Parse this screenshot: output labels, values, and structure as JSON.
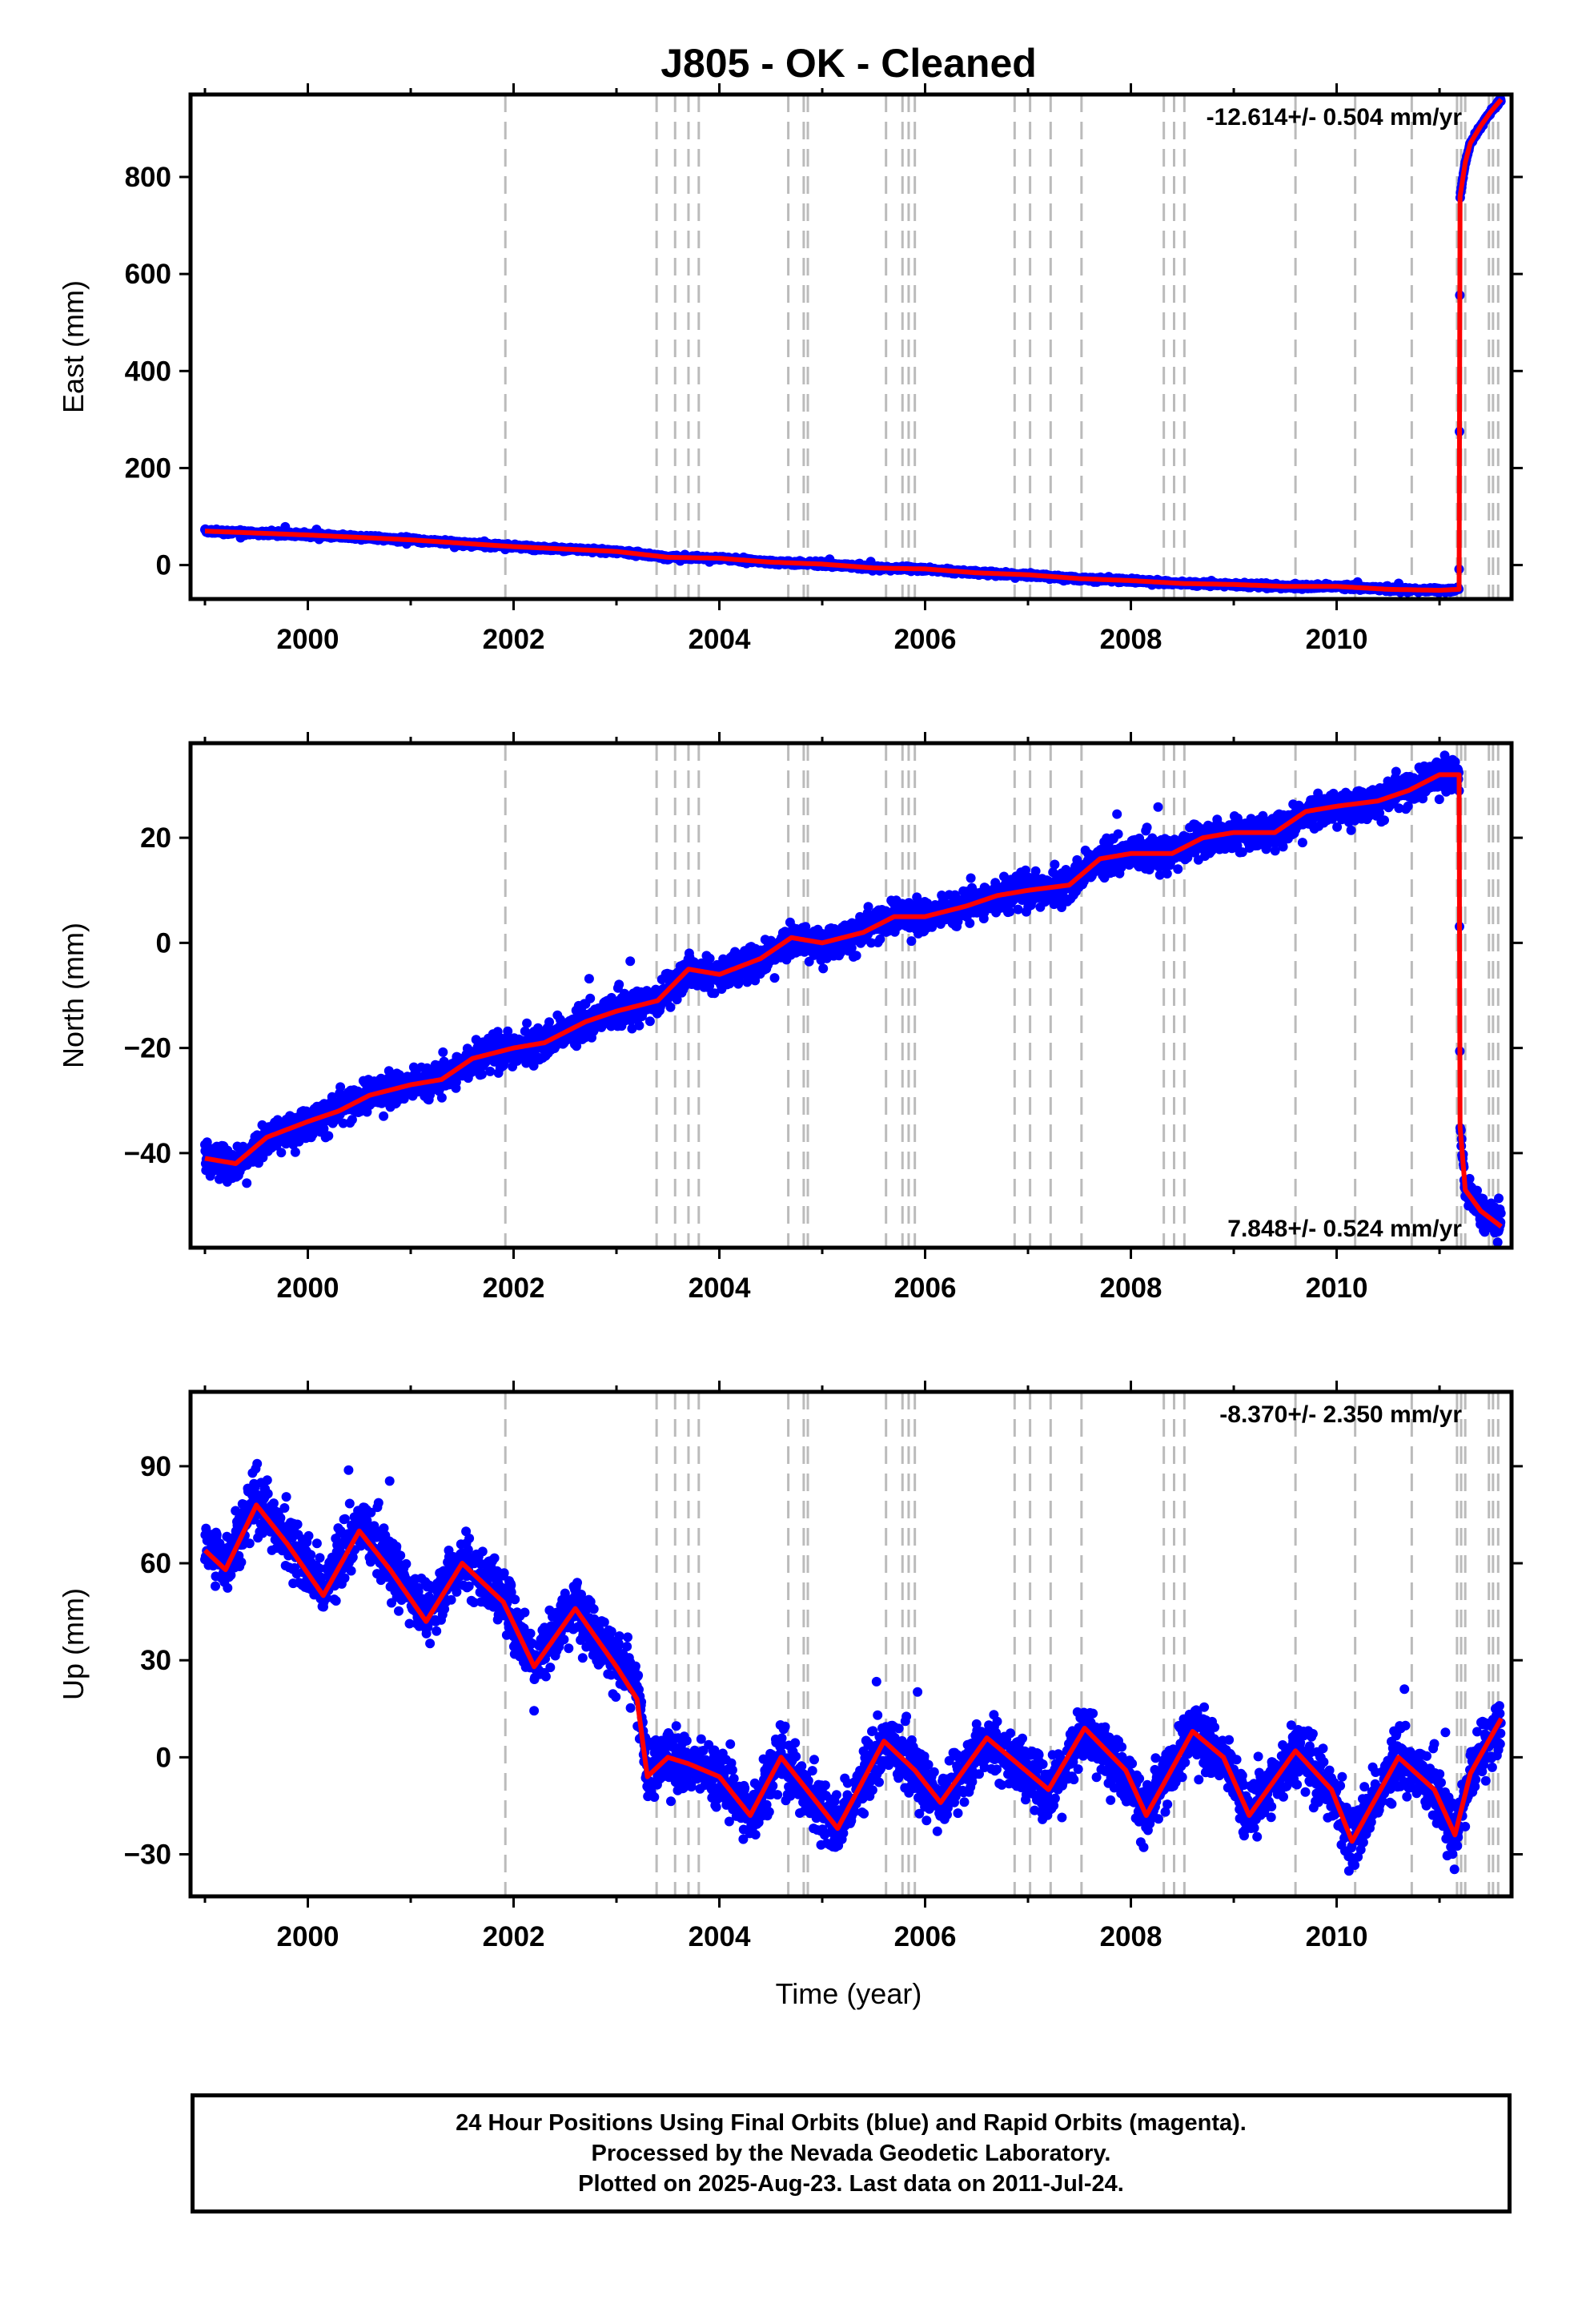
{
  "chart_data": {
    "type": "scatter",
    "title": "J805  - OK - Cleaned",
    "xlabel": "Time (year)",
    "xlim": [
      1998.86,
      2011.7
    ],
    "x_ticks": [
      "2000",
      "2002",
      "2004",
      "2006",
      "2008",
      "2010"
    ],
    "colors": {
      "observations": "#0000ff",
      "model": "#ff0000",
      "steps": "#bbbbbb"
    },
    "step_epochs": [
      2001.92,
      2003.39,
      2003.57,
      2003.7,
      2003.8,
      2004.67,
      2004.82,
      2004.86,
      2005.62,
      2005.78,
      2005.84,
      2005.9,
      2006.87,
      2007.02,
      2007.22,
      2007.52,
      2008.32,
      2008.42,
      2008.52,
      2009.6,
      2010.18,
      2010.73,
      2011.17,
      2011.21,
      2011.25,
      2011.48,
      2011.52,
      2011.57
    ],
    "panels": [
      {
        "ylabel": "East (mm)",
        "ylim": [
          -70,
          970
        ],
        "y_ticks": [
          "0",
          "200",
          "400",
          "600",
          "800"
        ],
        "y_tick_values": [
          0,
          200,
          400,
          600,
          800
        ],
        "rate": "-12.614+/- 0.504 mm/yr",
        "rate_position": "top-right",
        "series": [
          {
            "x": [
              1999.0,
              1999.5,
              2000.0,
              2000.5,
              2001.0,
              2001.5,
              2002.0,
              2002.5,
              2003.0,
              2003.5,
              2004.0,
              2004.5,
              2005.0,
              2005.5,
              2006.0,
              2006.5,
              2007.0,
              2007.5,
              2008.0,
              2008.5,
              2009.0,
              2009.5,
              2010.0,
              2010.5,
              2011.0,
              2011.19,
              2011.2,
              2011.25,
              2011.3,
              2011.4,
              2011.5,
              2011.6
            ],
            "y": [
              70,
              66,
              62,
              57,
              52,
              45,
              38,
              33,
              28,
              16,
              14,
              6,
              2,
              -6,
              -8,
              -16,
              -20,
              -28,
              -32,
              -38,
              -40,
              -44,
              -44,
              -50,
              -52,
              -50,
              760,
              830,
              870,
              905,
              935,
              960
            ],
            "noise": 4
          }
        ]
      },
      {
        "ylabel": "North (mm)",
        "ylim": [
          -58,
          38
        ],
        "y_ticks": [
          "−40",
          "−20",
          "0",
          "20"
        ],
        "y_tick_values": [
          -40,
          -20,
          0,
          20
        ],
        "rate": "7.848+/- 0.524 mm/yr",
        "rate_position": "bottom-right",
        "series": [
          {
            "x": [
              1999.0,
              1999.3,
              1999.6,
              2000.0,
              2000.3,
              2000.6,
              2001.0,
              2001.3,
              2001.6,
              2002.0,
              2002.3,
              2002.7,
              2003.0,
              2003.4,
              2003.7,
              2004.0,
              2004.4,
              2004.7,
              2005.0,
              2005.4,
              2005.7,
              2006.0,
              2006.4,
              2006.7,
              2007.0,
              2007.4,
              2007.7,
              2008.0,
              2008.4,
              2008.7,
              2009.0,
              2009.4,
              2009.7,
              2010.0,
              2010.4,
              2010.7,
              2011.0,
              2011.19,
              2011.2,
              2011.25,
              2011.4,
              2011.6
            ],
            "y": [
              -41,
              -42,
              -37,
              -34,
              -32,
              -29,
              -27,
              -26,
              -22,
              -20,
              -19,
              -15,
              -13,
              -11,
              -5,
              -6,
              -3,
              1,
              0,
              2,
              5,
              5,
              7,
              9,
              10,
              11,
              16,
              17,
              17,
              20,
              21,
              21,
              25,
              26,
              27,
              29,
              32,
              32,
              -35,
              -47,
              -51,
              -54
            ],
            "noise": 2.8
          }
        ]
      },
      {
        "ylabel": "Up (mm)",
        "ylim": [
          -43,
          113
        ],
        "y_ticks": [
          "−30",
          "0",
          "30",
          "60",
          "90"
        ],
        "y_tick_values": [
          -30,
          0,
          30,
          60,
          90
        ],
        "rate": "-8.370+/- 2.350 mm/yr",
        "rate_position": "top-right",
        "series": [
          {
            "x": [
              1999.0,
              1999.2,
              1999.5,
              1999.8,
              2000.15,
              2000.5,
              2000.8,
              2001.15,
              2001.5,
              2001.9,
              2002.2,
              2002.6,
              2003.0,
              2003.2,
              2003.3,
              2003.5,
              2003.7,
              2004.0,
              2004.3,
              2004.6,
              2005.15,
              2005.6,
              2005.9,
              2006.15,
              2006.6,
              2006.9,
              2007.2,
              2007.55,
              2007.95,
              2008.15,
              2008.6,
              2008.9,
              2009.15,
              2009.6,
              2009.95,
              2010.15,
              2010.6,
              2010.95,
              2011.15,
              2011.3,
              2011.6
            ],
            "y": [
              64,
              58,
              78,
              66,
              50,
              70,
              58,
              42,
              60,
              48,
              28,
              46,
              28,
              18,
              -6,
              0,
              -2,
              -6,
              -18,
              0,
              -22,
              5,
              -4,
              -14,
              6,
              -2,
              -10,
              9,
              -4,
              -18,
              8,
              0,
              -18,
              2,
              -10,
              -26,
              0,
              -10,
              -24,
              -5,
              12
            ],
            "noise": 8
          }
        ]
      }
    ],
    "caption": [
      "24 Hour Positions Using Final Orbits (blue) and Rapid Orbits (magenta).",
      "Processed by the Nevada Geodetic Laboratory.",
      "Plotted on 2025-Aug-23. Last data on 2011-Jul-24."
    ]
  }
}
